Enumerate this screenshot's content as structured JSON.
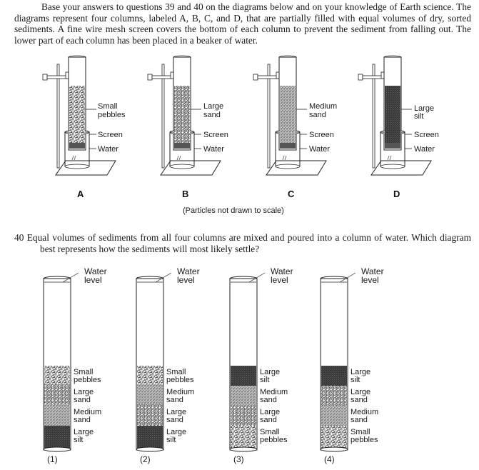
{
  "intro_text": "Base your answers to questions 39 and 40 on the diagrams below and on your knowledge of Earth science. The diagrams represent four columns, labeled A, B, C, and D, that are partially filled with equal volumes of dry, sorted sediments. A fine wire mesh screen covers the bottom of each column to prevent the sediment from falling out. The lower part of each column has been placed in a beaker of water.",
  "note": "(Particles not drawn to scale)",
  "columns": [
    {
      "letter": "A",
      "sediment": [
        "Small",
        "pebbles"
      ],
      "screen": "Screen",
      "water": "Water"
    },
    {
      "letter": "B",
      "sediment": [
        "Large",
        "sand"
      ],
      "screen": "Screen",
      "water": "Water"
    },
    {
      "letter": "C",
      "sediment": [
        "Medium",
        "sand"
      ],
      "screen": "Screen",
      "water": "Water"
    },
    {
      "letter": "D",
      "sediment": [
        "Large",
        "silt"
      ],
      "screen": "Screen",
      "water": "Water"
    }
  ],
  "question": {
    "number": "40",
    "text": "Equal volumes of sediments from all four columns are mixed and poured into a column of water. Which diagram best represents how the sediments will most likely settle?"
  },
  "options": [
    {
      "label": "(1)",
      "water": [
        "Water",
        "level"
      ],
      "layers": [
        [
          "Small",
          "pebbles"
        ],
        [
          "Large",
          "sand"
        ],
        [
          "Medium",
          "sand"
        ],
        [
          "Large",
          "silt"
        ]
      ]
    },
    {
      "label": "(2)",
      "water": [
        "Water",
        "level"
      ],
      "layers": [
        [
          "Small",
          "pebbles"
        ],
        [
          "Medium",
          "sand"
        ],
        [
          "Large",
          "sand"
        ],
        [
          "Large",
          "silt"
        ]
      ]
    },
    {
      "label": "(3)",
      "water": [
        "Water",
        "level"
      ],
      "layers": [
        [
          "Large",
          "silt"
        ],
        [
          "Medium",
          "sand"
        ],
        [
          "Large",
          "sand"
        ],
        [
          "Small",
          "pebbles"
        ]
      ]
    },
    {
      "label": "(4)",
      "water": [
        "Water",
        "level"
      ],
      "layers": [
        [
          "Large",
          "silt"
        ],
        [
          "Large",
          "sand"
        ],
        [
          "Medium",
          "sand"
        ],
        [
          "Small",
          "pebbles"
        ]
      ]
    }
  ]
}
